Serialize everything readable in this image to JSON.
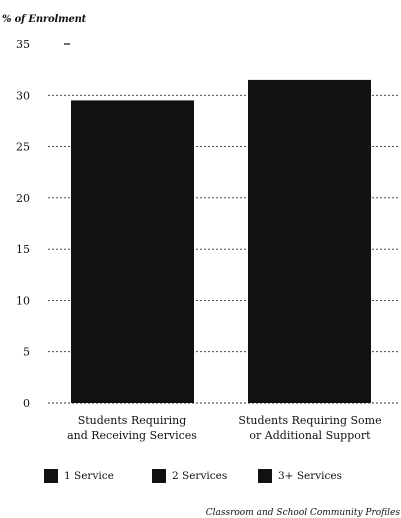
{
  "chart_data": {
    "type": "bar",
    "ylabel": "% of Enrolment",
    "categories": [
      [
        "Students Requiring",
        "and Receiving Services"
      ],
      [
        "Students Requiring Some",
        "or Additional Support"
      ]
    ],
    "values": [
      29.5,
      31.5
    ],
    "ylim": [
      0,
      35
    ],
    "yticks": [
      0,
      5,
      10,
      15,
      20,
      25,
      30,
      35
    ],
    "grid": true,
    "bar_color": "#111111",
    "legend": {
      "placement": "bottom",
      "entries": [
        "1 Service",
        "2 Services",
        "3+ Services"
      ]
    },
    "source": "Classroom and School Community Profiles"
  }
}
